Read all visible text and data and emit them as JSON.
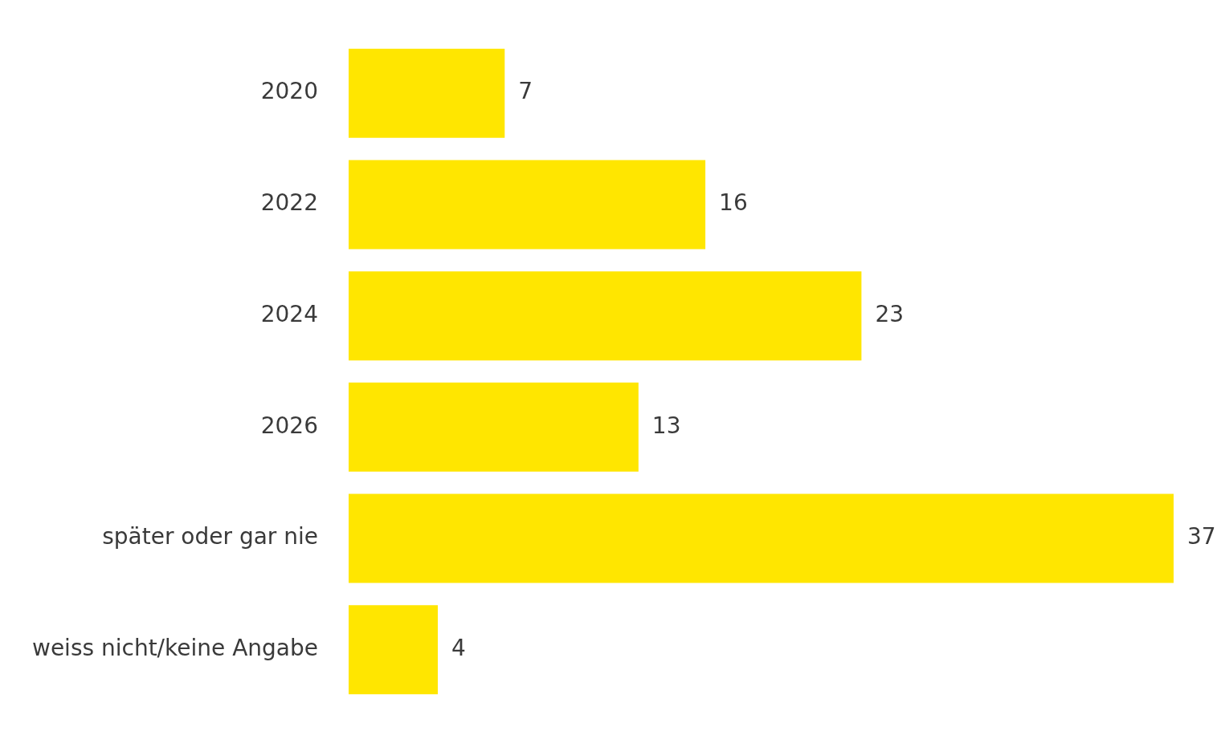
{
  "chart_data": {
    "type": "bar",
    "orientation": "horizontal",
    "categories": [
      "2020",
      "2022",
      "2024",
      "2026",
      "später oder gar nie",
      "weiss nicht/keine Angabe"
    ],
    "values": [
      7,
      16,
      23,
      13,
      37,
      4
    ],
    "color": "#ffe600",
    "data_labels": true
  }
}
